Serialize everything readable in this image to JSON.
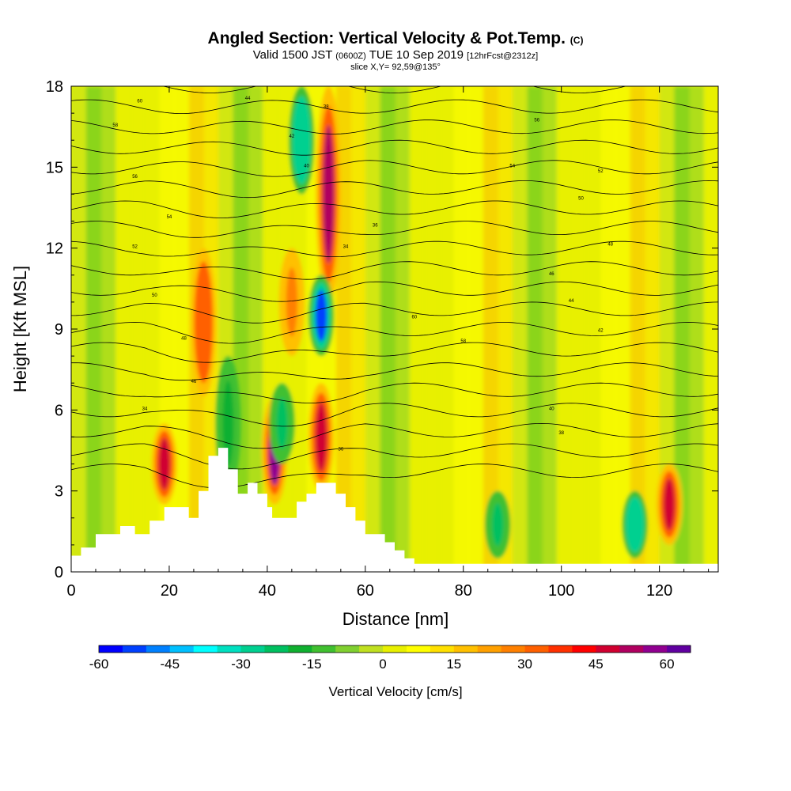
{
  "title": {
    "main": "Angled Section: Vertical Velocity & Pot.Temp.",
    "main_suffix": "(C)",
    "valid_prefix": "Valid 1500 JST",
    "valid_utc": "(0600Z)",
    "valid_date": "TUE 10 Sep 2019",
    "valid_fcst": "[12hrFcst@2312z]",
    "slice": "slice X,Y= 92,59@135°"
  },
  "chart_data": {
    "type": "heatmap",
    "xlabel": "Distance [nm]",
    "ylabel": "Height [Kft MSL]",
    "xlim": [
      0,
      132
    ],
    "ylim": [
      0,
      18
    ],
    "x_ticks": [
      "0",
      "20",
      "40",
      "60",
      "80",
      "100",
      "120"
    ],
    "x_tick_values": [
      0,
      20,
      40,
      60,
      80,
      100,
      120
    ],
    "y_ticks": [
      "0",
      "3",
      "6",
      "9",
      "12",
      "15",
      "18"
    ],
    "y_tick_values": [
      0,
      3,
      6,
      9,
      12,
      15,
      18
    ],
    "colorbar": {
      "title": "Vertical Velocity [cm/s]",
      "min": -60,
      "max": 65,
      "step": 5,
      "tick_labels": [
        "-60",
        "-45",
        "-30",
        "-15",
        "0",
        "15",
        "30",
        "45",
        "60"
      ],
      "tick_values": [
        -60,
        -45,
        -30,
        -15,
        0,
        15,
        30,
        45,
        60
      ],
      "colors": [
        "#0000ff",
        "#0040ff",
        "#0080ff",
        "#00c0ff",
        "#00ffff",
        "#00e0c0",
        "#00d090",
        "#00c060",
        "#10b030",
        "#40c030",
        "#80d030",
        "#c0e020",
        "#e8f000",
        "#ffff00",
        "#ffe000",
        "#ffc000",
        "#ffa000",
        "#ff8000",
        "#ff6000",
        "#ff3000",
        "#ff0000",
        "#d00030",
        "#b00060",
        "#900090",
        "#6000a0"
      ]
    },
    "terrain_profile": {
      "x": [
        0,
        2,
        5,
        10,
        13,
        16,
        19,
        22,
        24,
        26,
        28,
        30,
        32,
        34,
        36,
        38,
        40,
        41,
        44,
        46,
        48,
        50,
        52,
        54,
        56,
        58,
        60,
        62,
        64,
        66,
        68,
        70,
        132
      ],
      "height": [
        0.6,
        0.9,
        1.4,
        1.7,
        1.4,
        1.9,
        2.4,
        2.4,
        2.0,
        3.0,
        4.3,
        4.6,
        3.8,
        2.9,
        3.3,
        2.9,
        2.4,
        2.0,
        2.0,
        2.6,
        2.9,
        3.3,
        3.3,
        2.9,
        2.4,
        1.9,
        1.4,
        1.4,
        1.1,
        0.8,
        0.5,
        0.3,
        0.3
      ]
    },
    "vertical_velocity_features": [
      {
        "x": 19,
        "zmin": 2.5,
        "zmax": 5.5,
        "w": 48
      },
      {
        "x": 27,
        "zmin": 6.5,
        "zmax": 12,
        "w": 30
      },
      {
        "x": 41.5,
        "zmin": 2.5,
        "zmax": 6.5,
        "w": 55
      },
      {
        "x": 45,
        "zmin": 8,
        "zmax": 12,
        "w": 28
      },
      {
        "x": 51,
        "zmin": 3,
        "zmax": 7,
        "w": 45
      },
      {
        "x": 52.5,
        "zmin": 10,
        "zmax": 18,
        "w": 50
      },
      {
        "x": 51,
        "zmin": 8,
        "zmax": 11,
        "w": -55
      },
      {
        "x": 47,
        "zmin": 14,
        "zmax": 18,
        "w": -30
      },
      {
        "x": 43,
        "zmin": 4,
        "zmax": 7,
        "w": -25
      },
      {
        "x": 32,
        "zmin": 3,
        "zmax": 8,
        "w": -20
      },
      {
        "x": 122,
        "zmin": 1,
        "zmax": 4,
        "w": 45
      },
      {
        "x": 115,
        "zmin": 0.5,
        "zmax": 3,
        "w": -30
      },
      {
        "x": 87,
        "zmin": 0.5,
        "zmax": 3,
        "w": -25
      }
    ],
    "pot_temp_contour_labels": [
      "60",
      "58",
      "56",
      "54",
      "52",
      "50",
      "48",
      "46",
      "44",
      "42",
      "40",
      "38",
      "36",
      "34"
    ]
  }
}
